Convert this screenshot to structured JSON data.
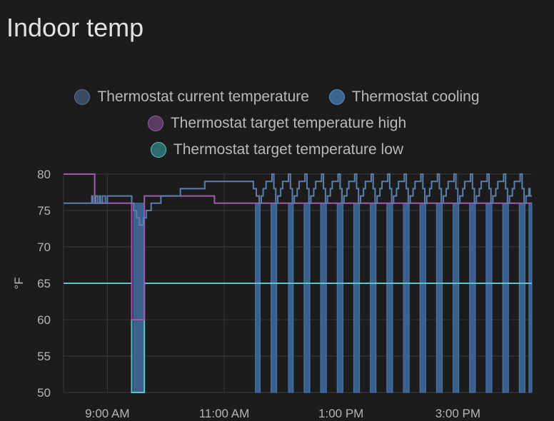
{
  "card": {
    "title": "Indoor temp"
  },
  "chart_data": {
    "type": "line",
    "title": "Indoor temp",
    "ylabel": "°F",
    "xlabel": "",
    "ylim": [
      50,
      80
    ],
    "xlim": [
      "08:15",
      "16:16"
    ],
    "yticks": [
      80,
      75,
      70,
      65,
      60,
      55,
      50
    ],
    "xticks": [
      {
        "label": "9:00 AM",
        "t": "09:00"
      },
      {
        "label": "11:00 AM",
        "t": "11:00"
      },
      {
        "label": "1:00 PM",
        "t": "13:00"
      },
      {
        "label": "3:00 PM",
        "t": "15:00"
      }
    ],
    "grid": true,
    "legend_position": "top-center",
    "series": [
      {
        "name": "Thermostat current temperature",
        "kind": "line",
        "color": "#5b7fad",
        "points": [
          [
            "08:15",
            76
          ],
          [
            "08:44",
            76
          ],
          [
            "08:44",
            77
          ],
          [
            "08:45",
            77
          ],
          [
            "08:45",
            76
          ],
          [
            "08:48",
            76
          ],
          [
            "08:48",
            77
          ],
          [
            "08:50",
            77
          ],
          [
            "08:50",
            76
          ],
          [
            "08:52",
            76
          ],
          [
            "08:52",
            77
          ],
          [
            "08:53",
            77
          ],
          [
            "08:53",
            76
          ],
          [
            "08:55",
            76
          ],
          [
            "08:55",
            77
          ],
          [
            "08:58",
            77
          ],
          [
            "08:58",
            76
          ],
          [
            "09:00",
            76
          ],
          [
            "09:00",
            77
          ],
          [
            "09:25",
            77
          ],
          [
            "09:25",
            76
          ],
          [
            "09:27",
            76
          ],
          [
            "09:27",
            75
          ],
          [
            "09:30",
            75
          ],
          [
            "09:30",
            74
          ],
          [
            "09:33",
            74
          ],
          [
            "09:33",
            73
          ],
          [
            "09:37",
            73
          ],
          [
            "09:37",
            74
          ],
          [
            "09:40",
            74
          ],
          [
            "09:40",
            75
          ],
          [
            "09:45",
            75
          ],
          [
            "09:45",
            76
          ],
          [
            "09:55",
            76
          ],
          [
            "09:55",
            77
          ],
          [
            "10:15",
            77
          ],
          [
            "10:15",
            78
          ],
          [
            "10:40",
            78
          ],
          [
            "10:40",
            79
          ],
          [
            "11:30",
            79
          ],
          [
            "11:30",
            78
          ],
          [
            "11:33",
            78
          ],
          [
            "11:33",
            77
          ],
          [
            "11:36",
            77
          ],
          [
            "11:36",
            76
          ],
          [
            "11:38",
            76
          ],
          [
            "11:38",
            77
          ],
          [
            "11:40",
            77
          ],
          [
            "11:40",
            78
          ],
          [
            "11:43",
            78
          ],
          [
            "11:43",
            79
          ],
          [
            "11:49",
            79
          ],
          [
            "11:49",
            80
          ],
          [
            "11:51",
            80
          ],
          [
            "11:51",
            78
          ],
          [
            "11:53",
            78
          ],
          [
            "11:53",
            76
          ],
          [
            "11:55",
            76
          ],
          [
            "11:55",
            77
          ],
          [
            "11:58",
            77
          ],
          [
            "11:58",
            78
          ],
          [
            "12:00",
            78
          ],
          [
            "12:00",
            79
          ],
          [
            "12:06",
            79
          ],
          [
            "12:06",
            80
          ],
          [
            "12:08",
            80
          ],
          [
            "12:08",
            78
          ],
          [
            "12:10",
            78
          ],
          [
            "12:10",
            76
          ],
          [
            "12:12",
            76
          ],
          [
            "12:12",
            77
          ],
          [
            "12:15",
            77
          ],
          [
            "12:15",
            78
          ],
          [
            "12:17",
            78
          ],
          [
            "12:17",
            79
          ],
          [
            "12:23",
            79
          ],
          [
            "12:23",
            80
          ],
          [
            "12:25",
            80
          ],
          [
            "12:25",
            78
          ],
          [
            "12:27",
            78
          ],
          [
            "12:27",
            76
          ],
          [
            "12:29",
            76
          ],
          [
            "12:29",
            77
          ],
          [
            "12:32",
            77
          ],
          [
            "12:32",
            78
          ],
          [
            "12:34",
            78
          ],
          [
            "12:34",
            79
          ],
          [
            "12:40",
            79
          ],
          [
            "12:40",
            80
          ],
          [
            "12:42",
            80
          ],
          [
            "12:42",
            78
          ],
          [
            "12:44",
            78
          ],
          [
            "12:44",
            76
          ],
          [
            "12:46",
            76
          ],
          [
            "12:46",
            77
          ],
          [
            "12:49",
            77
          ],
          [
            "12:49",
            78
          ],
          [
            "12:51",
            78
          ],
          [
            "12:51",
            79
          ],
          [
            "12:57",
            79
          ],
          [
            "12:57",
            80
          ],
          [
            "12:59",
            80
          ],
          [
            "12:59",
            78
          ],
          [
            "13:01",
            78
          ],
          [
            "13:01",
            76
          ],
          [
            "13:03",
            76
          ],
          [
            "13:03",
            77
          ],
          [
            "13:06",
            77
          ],
          [
            "13:06",
            78
          ],
          [
            "13:08",
            78
          ],
          [
            "13:08",
            79
          ],
          [
            "13:14",
            79
          ],
          [
            "13:14",
            80
          ],
          [
            "13:16",
            80
          ],
          [
            "13:16",
            78
          ],
          [
            "13:18",
            78
          ],
          [
            "13:18",
            76
          ],
          [
            "13:20",
            76
          ],
          [
            "13:20",
            77
          ],
          [
            "13:23",
            77
          ],
          [
            "13:23",
            78
          ],
          [
            "13:25",
            78
          ],
          [
            "13:25",
            79
          ],
          [
            "13:31",
            79
          ],
          [
            "13:31",
            80
          ],
          [
            "13:33",
            80
          ],
          [
            "13:33",
            78
          ],
          [
            "13:35",
            78
          ],
          [
            "13:35",
            76
          ],
          [
            "13:37",
            76
          ],
          [
            "13:37",
            77
          ],
          [
            "13:40",
            77
          ],
          [
            "13:40",
            78
          ],
          [
            "13:42",
            78
          ],
          [
            "13:42",
            79
          ],
          [
            "13:48",
            79
          ],
          [
            "13:48",
            80
          ],
          [
            "13:50",
            80
          ],
          [
            "13:50",
            78
          ],
          [
            "13:52",
            78
          ],
          [
            "13:52",
            76
          ],
          [
            "13:54",
            76
          ],
          [
            "13:54",
            77
          ],
          [
            "13:57",
            77
          ],
          [
            "13:57",
            78
          ],
          [
            "13:59",
            78
          ],
          [
            "13:59",
            79
          ],
          [
            "14:05",
            79
          ],
          [
            "14:05",
            80
          ],
          [
            "14:07",
            80
          ],
          [
            "14:07",
            78
          ],
          [
            "14:09",
            78
          ],
          [
            "14:09",
            76
          ],
          [
            "14:11",
            76
          ],
          [
            "14:11",
            77
          ],
          [
            "14:14",
            77
          ],
          [
            "14:14",
            78
          ],
          [
            "14:16",
            78
          ],
          [
            "14:16",
            79
          ],
          [
            "14:22",
            79
          ],
          [
            "14:22",
            80
          ],
          [
            "14:24",
            80
          ],
          [
            "14:24",
            78
          ],
          [
            "14:26",
            78
          ],
          [
            "14:26",
            76
          ],
          [
            "14:28",
            76
          ],
          [
            "14:28",
            77
          ],
          [
            "14:31",
            77
          ],
          [
            "14:31",
            78
          ],
          [
            "14:33",
            78
          ],
          [
            "14:33",
            79
          ],
          [
            "14:39",
            79
          ],
          [
            "14:39",
            80
          ],
          [
            "14:41",
            80
          ],
          [
            "14:41",
            78
          ],
          [
            "14:43",
            78
          ],
          [
            "14:43",
            76
          ],
          [
            "14:45",
            76
          ],
          [
            "14:45",
            77
          ],
          [
            "14:48",
            77
          ],
          [
            "14:48",
            78
          ],
          [
            "14:50",
            78
          ],
          [
            "14:50",
            79
          ],
          [
            "14:56",
            79
          ],
          [
            "14:56",
            80
          ],
          [
            "14:58",
            80
          ],
          [
            "14:58",
            78
          ],
          [
            "15:00",
            78
          ],
          [
            "15:00",
            76
          ],
          [
            "15:02",
            76
          ],
          [
            "15:02",
            77
          ],
          [
            "15:05",
            77
          ],
          [
            "15:05",
            78
          ],
          [
            "15:07",
            78
          ],
          [
            "15:07",
            79
          ],
          [
            "15:13",
            79
          ],
          [
            "15:13",
            80
          ],
          [
            "15:15",
            80
          ],
          [
            "15:15",
            78
          ],
          [
            "15:17",
            78
          ],
          [
            "15:17",
            76
          ],
          [
            "15:19",
            76
          ],
          [
            "15:19",
            77
          ],
          [
            "15:22",
            77
          ],
          [
            "15:22",
            78
          ],
          [
            "15:24",
            78
          ],
          [
            "15:24",
            79
          ],
          [
            "15:30",
            79
          ],
          [
            "15:30",
            80
          ],
          [
            "15:32",
            80
          ],
          [
            "15:32",
            78
          ],
          [
            "15:34",
            78
          ],
          [
            "15:34",
            76
          ],
          [
            "15:36",
            76
          ],
          [
            "15:36",
            77
          ],
          [
            "15:39",
            77
          ],
          [
            "15:39",
            78
          ],
          [
            "15:41",
            78
          ],
          [
            "15:41",
            79
          ],
          [
            "15:47",
            79
          ],
          [
            "15:47",
            80
          ],
          [
            "15:49",
            80
          ],
          [
            "15:49",
            78
          ],
          [
            "15:51",
            78
          ],
          [
            "15:51",
            76
          ],
          [
            "15:53",
            76
          ],
          [
            "15:53",
            77
          ],
          [
            "15:56",
            77
          ],
          [
            "15:56",
            78
          ],
          [
            "15:58",
            78
          ],
          [
            "15:58",
            79
          ],
          [
            "16:04",
            79
          ],
          [
            "16:04",
            80
          ],
          [
            "16:06",
            80
          ],
          [
            "16:06",
            78
          ],
          [
            "16:08",
            78
          ],
          [
            "16:08",
            76
          ],
          [
            "16:10",
            76
          ],
          [
            "16:10",
            77
          ],
          [
            "16:13",
            77
          ],
          [
            "16:13",
            78
          ],
          [
            "16:14",
            78
          ],
          [
            "16:14",
            77
          ],
          [
            "16:16",
            77
          ]
        ]
      },
      {
        "name": "Thermostat cooling",
        "kind": "bars",
        "color": "#4a79b4",
        "fill": "#3d6491",
        "top": 76,
        "intervals": [
          [
            "09:27",
            "09:38"
          ],
          [
            "11:32",
            "11:37"
          ],
          [
            "11:48",
            "11:54"
          ],
          [
            "12:06",
            "12:11"
          ],
          [
            "12:22",
            "12:28"
          ],
          [
            "12:39",
            "12:45"
          ],
          [
            "12:56",
            "13:02"
          ],
          [
            "13:13",
            "13:19"
          ],
          [
            "13:30",
            "13:36"
          ],
          [
            "13:47",
            "13:53"
          ],
          [
            "14:04",
            "14:10"
          ],
          [
            "14:21",
            "14:27"
          ],
          [
            "14:38",
            "14:44"
          ],
          [
            "14:55",
            "15:01"
          ],
          [
            "15:12",
            "15:18"
          ],
          [
            "15:29",
            "15:35"
          ],
          [
            "15:46",
            "15:52"
          ],
          [
            "16:03",
            "16:09"
          ],
          [
            "16:13",
            "16:16"
          ]
        ]
      },
      {
        "name": "Thermostat target temperature high",
        "kind": "line",
        "color": "#a058b0",
        "points": [
          [
            "08:15",
            80
          ],
          [
            "08:47",
            80
          ],
          [
            "08:47",
            76
          ],
          [
            "09:25",
            76
          ],
          [
            "09:25",
            60
          ],
          [
            "09:38",
            60
          ],
          [
            "09:38",
            77
          ],
          [
            "10:50",
            77
          ],
          [
            "10:50",
            76
          ],
          [
            "16:16",
            76
          ]
        ]
      },
      {
        "name": "Thermostat target temperature low",
        "kind": "line",
        "color": "#5cc5cc",
        "points": [
          [
            "08:15",
            65
          ],
          [
            "09:25",
            65
          ],
          [
            "09:25",
            50
          ],
          [
            "09:38",
            50
          ],
          [
            "09:38",
            65
          ],
          [
            "16:16",
            65
          ]
        ]
      }
    ]
  }
}
